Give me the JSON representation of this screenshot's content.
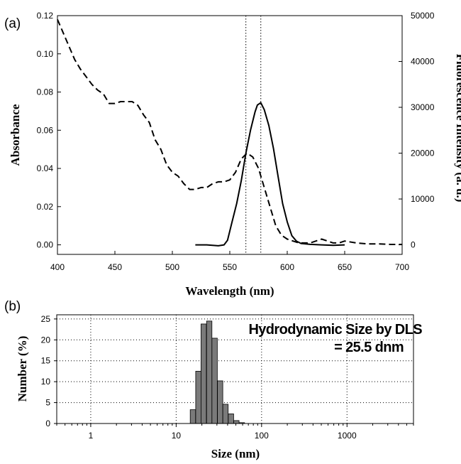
{
  "chart_data": [
    {
      "panel": "(a)",
      "type": "line",
      "xlabel": "Wavelength (nm)",
      "ylabel": "Absorbance",
      "y2label": "Fluorescence Intensity (a. u.)",
      "xlim": [
        400,
        700
      ],
      "ylim": [
        -0.005,
        0.12
      ],
      "y2lim": [
        -2083,
        50000
      ],
      "xticks": [
        "400",
        "450",
        "500",
        "550",
        "600",
        "650",
        "700"
      ],
      "yticks": [
        "0.00",
        "0.02",
        "0.04",
        "0.06",
        "0.08",
        "0.10",
        "0.12"
      ],
      "y2ticks": [
        "0",
        "10000",
        "20000",
        "30000",
        "40000",
        "50000"
      ],
      "vlines": [
        564,
        577
      ],
      "series": [
        {
          "style": "dashed",
          "axis": "left",
          "x": [
            400,
            405,
            410,
            415,
            420,
            425,
            430,
            435,
            440,
            445,
            450,
            455,
            460,
            465,
            470,
            475,
            480,
            485,
            490,
            495,
            500,
            505,
            510,
            515,
            520,
            525,
            530,
            535,
            540,
            545,
            550,
            555,
            560,
            565,
            570,
            575,
            580,
            585,
            590,
            595,
            600,
            605,
            610,
            615,
            620,
            625,
            630,
            635,
            640,
            645,
            650,
            660,
            670,
            680,
            690,
            700
          ],
          "y": [
            0.118,
            0.111,
            0.104,
            0.097,
            0.092,
            0.088,
            0.084,
            0.081,
            0.079,
            0.074,
            0.074,
            0.075,
            0.075,
            0.075,
            0.073,
            0.068,
            0.064,
            0.055,
            0.05,
            0.042,
            0.038,
            0.036,
            0.032,
            0.029,
            0.029,
            0.03,
            0.03,
            0.032,
            0.033,
            0.033,
            0.034,
            0.038,
            0.045,
            0.048,
            0.046,
            0.04,
            0.03,
            0.02,
            0.01,
            0.005,
            0.003,
            0.002,
            0.001,
            0.001,
            0.001,
            0.002,
            0.003,
            0.002,
            0.001,
            0.001,
            0.002,
            0.001,
            0.0005,
            0.0005,
            0.0002,
            0.0002
          ]
        },
        {
          "style": "solid",
          "axis": "right",
          "x": [
            520,
            530,
            540,
            545,
            548,
            552,
            556,
            560,
            564,
            568,
            572,
            574,
            577,
            580,
            584,
            588,
            592,
            596,
            600,
            604,
            608,
            612,
            620,
            630,
            640,
            650
          ],
          "y": [
            0,
            0,
            -200,
            0,
            1000,
            5000,
            9000,
            14000,
            20000,
            25000,
            29000,
            30500,
            31000,
            29500,
            26000,
            21000,
            15000,
            9000,
            5000,
            2000,
            800,
            300,
            100,
            0,
            -100,
            0
          ]
        }
      ]
    },
    {
      "panel": "(b)",
      "type": "bar",
      "xscale": "log",
      "xlabel": "Size (nm)",
      "ylabel": "Number (%)",
      "xlim": [
        0.4,
        6000
      ],
      "ylim": [
        0,
        26
      ],
      "xticks": [
        "1",
        "10",
        "100",
        "1000"
      ],
      "yticks": [
        "0",
        "5",
        "10",
        "15",
        "20",
        "25"
      ],
      "annotation": [
        "Hydrodynamic Size by DLS",
        "= 25.5 dnm"
      ],
      "x": [
        15.7,
        18.2,
        21.0,
        24.4,
        28.2,
        32.7,
        37.8,
        43.8,
        50.7,
        58.8
      ],
      "values": [
        3.3,
        12.5,
        23.8,
        24.5,
        20.4,
        10.2,
        4.6,
        2.3,
        0.7,
        0.2
      ]
    }
  ]
}
